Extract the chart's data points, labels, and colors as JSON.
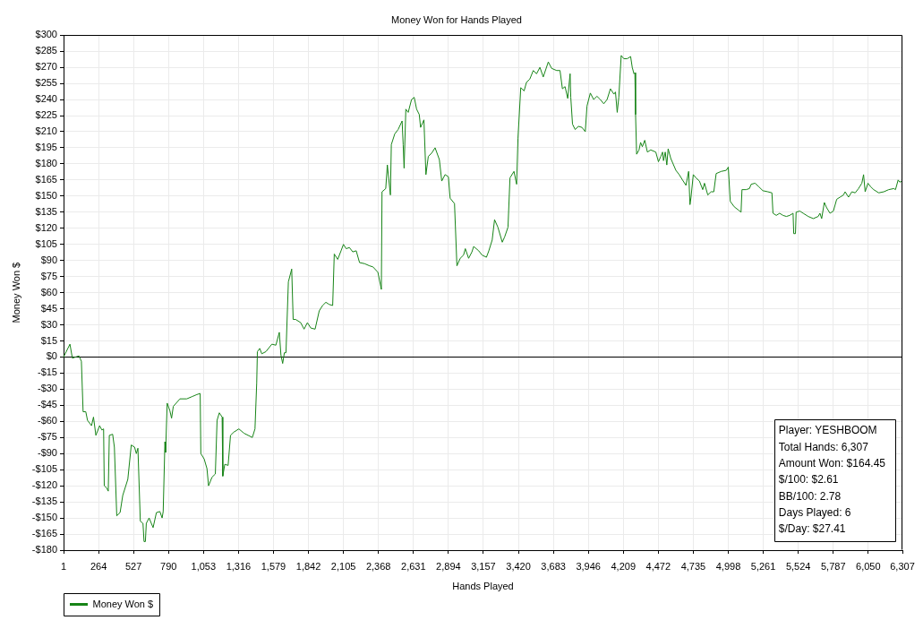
{
  "chart_data": {
    "type": "line",
    "title": "Money Won for Hands Played",
    "xlabel": "Hands Played",
    "ylabel": "Money Won $",
    "x": [
      1,
      49,
      67,
      92,
      117,
      135,
      148,
      168,
      181,
      211,
      226,
      244,
      272,
      289,
      302,
      307,
      325,
      337,
      345,
      370,
      383,
      401,
      426,
      446,
      484,
      510,
      535,
      548,
      560,
      578,
      598,
      606,
      616,
      623,
      644,
      674,
      699,
      725,
      742,
      750,
      763,
      768,
      780,
      800,
      813,
      826,
      876,
      927,
      965,
      1003,
      1028,
      1033,
      1058,
      1079,
      1091,
      1117,
      1142,
      1155,
      1172,
      1193,
      1198,
      1213,
      1238,
      1256,
      1281,
      1319,
      1357,
      1420,
      1440,
      1453,
      1458,
      1476,
      1491,
      1522,
      1567,
      1597,
      1623,
      1635,
      1648,
      1661,
      1673,
      1691,
      1716,
      1727,
      1746,
      1784,
      1809,
      1834,
      1860,
      1892,
      1923,
      1948,
      1973,
      1998,
      2024,
      2036,
      2062,
      2087,
      2105,
      2125,
      2150,
      2175,
      2201,
      2226,
      2264,
      2301,
      2327,
      2364,
      2390,
      2395,
      2423,
      2435,
      2458,
      2465,
      2491,
      2516,
      2546,
      2554,
      2561,
      2574,
      2592,
      2617,
      2637,
      2655,
      2675,
      2685,
      2710,
      2725,
      2743,
      2768,
      2794,
      2826,
      2844,
      2869,
      2894,
      2907,
      2940,
      2958,
      2983,
      3008,
      3021,
      3046,
      3071,
      3084,
      3122,
      3147,
      3180,
      3198,
      3223,
      3241,
      3266,
      3299,
      3317,
      3342,
      3357,
      3387,
      3407,
      3417,
      3438,
      3463,
      3481,
      3506,
      3532,
      3557,
      3582,
      3607,
      3645,
      3670,
      3708,
      3733,
      3751,
      3771,
      3791,
      3809,
      3814,
      3827,
      3847,
      3872,
      3898,
      3923,
      3936,
      3961,
      3986,
      4011,
      4036,
      4062,
      4087,
      4112,
      4138,
      4150,
      4163,
      4175,
      4193,
      4213,
      4238,
      4264,
      4276,
      4289,
      4296,
      4301,
      4309,
      4327,
      4339,
      4352,
      4370,
      4390,
      4415,
      4453,
      4473,
      4491,
      4504,
      4511,
      4524,
      4536,
      4546,
      4566,
      4604,
      4629,
      4654,
      4680,
      4700,
      4710,
      4718,
      4735,
      4755,
      4781,
      4806,
      4819,
      4844,
      4869,
      4889,
      4907,
      4945,
      4983,
      4998,
      5013,
      5043,
      5074,
      5094,
      5101,
      5132,
      5157,
      5170,
      5200,
      5225,
      5258,
      5296,
      5326,
      5334,
      5359,
      5384,
      5409,
      5435,
      5460,
      5485,
      5490,
      5503,
      5508,
      5536,
      5561,
      5599,
      5637,
      5674,
      5687,
      5700,
      5720,
      5738,
      5763,
      5788,
      5813,
      5838,
      5864,
      5876,
      5902,
      5927,
      5952,
      5977,
      6002,
      6015,
      6027,
      6048,
      6066,
      6091,
      6129,
      6167,
      6204,
      6242,
      6255,
      6275,
      6287,
      6307
    ],
    "series": [
      {
        "name": "Money Won $",
        "color": "#178417",
        "values": [
          0,
          12,
          -1,
          0,
          1,
          -4,
          -51,
          -51,
          -59,
          -64,
          -56,
          -73,
          -64,
          -68,
          -67,
          -120,
          -122,
          -125,
          -73,
          -72,
          -84,
          -148,
          -145,
          -129,
          -114,
          -82,
          -84,
          -90,
          -85,
          -153,
          -155,
          -172,
          -172,
          -155,
          -150,
          -159,
          -145,
          -144,
          -150,
          -144,
          -79,
          -89,
          -43,
          -50,
          -57,
          -46,
          -39,
          -39,
          -37,
          -35,
          -34,
          -90,
          -95,
          -104,
          -120,
          -112,
          -109,
          -59,
          -52,
          -56,
          -111,
          -100,
          -101,
          -73,
          -70,
          -67,
          -71,
          -75,
          -67,
          -24,
          5,
          8,
          3,
          5,
          12,
          11,
          23,
          2,
          -6,
          4,
          4,
          70,
          82,
          35,
          35,
          32,
          26,
          32,
          27,
          26,
          43,
          48,
          51,
          49,
          48,
          96,
          91,
          99,
          105,
          101,
          102,
          98,
          99,
          88,
          87,
          85,
          84,
          79,
          63,
          154,
          157,
          179,
          151,
          198,
          208,
          212,
          220,
          198,
          176,
          231,
          228,
          240,
          242,
          231,
          226,
          214,
          221,
          170,
          187,
          190,
          195,
          184,
          164,
          170,
          168,
          148,
          143,
          85,
          92,
          95,
          101,
          92,
          98,
          103,
          99,
          95,
          93,
          99,
          109,
          128,
          121,
          107,
          112,
          121,
          167,
          173,
          161,
          204,
          251,
          248,
          256,
          259,
          267,
          264,
          270,
          261,
          275,
          269,
          267,
          267,
          250,
          252,
          241,
          264,
          242,
          217,
          212,
          215,
          214,
          210,
          234,
          246,
          240,
          243,
          240,
          236,
          240,
          250,
          245,
          247,
          228,
          242,
          281,
          278,
          278,
          280,
          270,
          264,
          265,
          226,
          189,
          193,
          200,
          196,
          202,
          191,
          193,
          191,
          182,
          187,
          191,
          183,
          191,
          179,
          194,
          185,
          174,
          170,
          165,
          160,
          173,
          142,
          149,
          170,
          167,
          164,
          156,
          162,
          151,
          154,
          154,
          171,
          173,
          174,
          177,
          145,
          140,
          137,
          135,
          156,
          156,
          157,
          161,
          162,
          159,
          155,
          154,
          153,
          134,
          132,
          134,
          132,
          131,
          132,
          134,
          115,
          115,
          135,
          136,
          134,
          131,
          129,
          131,
          134,
          129,
          144,
          139,
          134,
          136,
          147,
          149,
          151,
          154,
          149,
          154,
          153,
          157,
          162,
          170,
          154,
          162,
          159,
          156,
          153,
          154,
          156,
          157,
          156,
          165,
          163,
          164
        ]
      }
    ],
    "xlim": [
      1,
      6307
    ],
    "xticks": [
      1,
      264,
      527,
      790,
      {
        "value": 1053,
        "label": "1,053"
      },
      {
        "value": 1316,
        "label": "1,316"
      },
      {
        "value": 1579,
        "label": "1,579"
      },
      {
        "value": 1842,
        "label": "1,842"
      },
      {
        "value": 2105,
        "label": "2,105"
      },
      {
        "value": 2368,
        "label": "2,368"
      },
      {
        "value": 2631,
        "label": "2,631"
      },
      {
        "value": 2894,
        "label": "2,894"
      },
      {
        "value": 3157,
        "label": "3,157"
      },
      {
        "value": 3420,
        "label": "3,420"
      },
      {
        "value": 3683,
        "label": "3,683"
      },
      {
        "value": 3946,
        "label": "3,946"
      },
      {
        "value": 4209,
        "label": "4,209"
      },
      {
        "value": 4472,
        "label": "4,472"
      },
      {
        "value": 4735,
        "label": "4,735"
      },
      {
        "value": 4998,
        "label": "4,998"
      },
      {
        "value": 5261,
        "label": "5,261"
      },
      {
        "value": 5524,
        "label": "5,524"
      },
      {
        "value": 5787,
        "label": "5,787"
      },
      {
        "value": 6050,
        "label": "6,050"
      },
      {
        "value": 6307,
        "label": "6,307"
      }
    ],
    "ylim": [
      -180,
      300
    ],
    "yticks": [
      {
        "value": -180,
        "label": "-$180"
      },
      {
        "value": -165,
        "label": "-$165"
      },
      {
        "value": -150,
        "label": "-$150"
      },
      {
        "value": -135,
        "label": "-$135"
      },
      {
        "value": -120,
        "label": "-$120"
      },
      {
        "value": -105,
        "label": "-$105"
      },
      {
        "value": -90,
        "label": "-$90"
      },
      {
        "value": -75,
        "label": "-$75"
      },
      {
        "value": -60,
        "label": "-$60"
      },
      {
        "value": -45,
        "label": "-$45"
      },
      {
        "value": -30,
        "label": "-$30"
      },
      {
        "value": -15,
        "label": "-$15"
      },
      {
        "value": 0,
        "label": "$0"
      },
      {
        "value": 15,
        "label": "$15"
      },
      {
        "value": 30,
        "label": "$30"
      },
      {
        "value": 45,
        "label": "$45"
      },
      {
        "value": 60,
        "label": "$60"
      },
      {
        "value": 75,
        "label": "$75"
      },
      {
        "value": 90,
        "label": "$90"
      },
      {
        "value": 105,
        "label": "$105"
      },
      {
        "value": 120,
        "label": "$120"
      },
      {
        "value": 135,
        "label": "$135"
      },
      {
        "value": 150,
        "label": "$150"
      },
      {
        "value": 165,
        "label": "$165"
      },
      {
        "value": 180,
        "label": "$180"
      },
      {
        "value": 195,
        "label": "$195"
      },
      {
        "value": 210,
        "label": "$210"
      },
      {
        "value": 225,
        "label": "$225"
      },
      {
        "value": 240,
        "label": "$240"
      },
      {
        "value": 255,
        "label": "$255"
      },
      {
        "value": 270,
        "label": "$270"
      },
      {
        "value": 285,
        "label": "$285"
      },
      {
        "value": 300,
        "label": "$300"
      }
    ],
    "ref_lines": [
      {
        "axis": "y",
        "value": 0,
        "color": "#000000"
      }
    ],
    "annotations": [
      "Player: YESHBOOM",
      "Total Hands: 6,307",
      "Amount Won: $164.45",
      "$/100: $2.61",
      "BB/100: 2.78",
      "Days Played: 6",
      "$/Day: $27.41"
    ],
    "grid": true,
    "legend": "bottom left"
  }
}
